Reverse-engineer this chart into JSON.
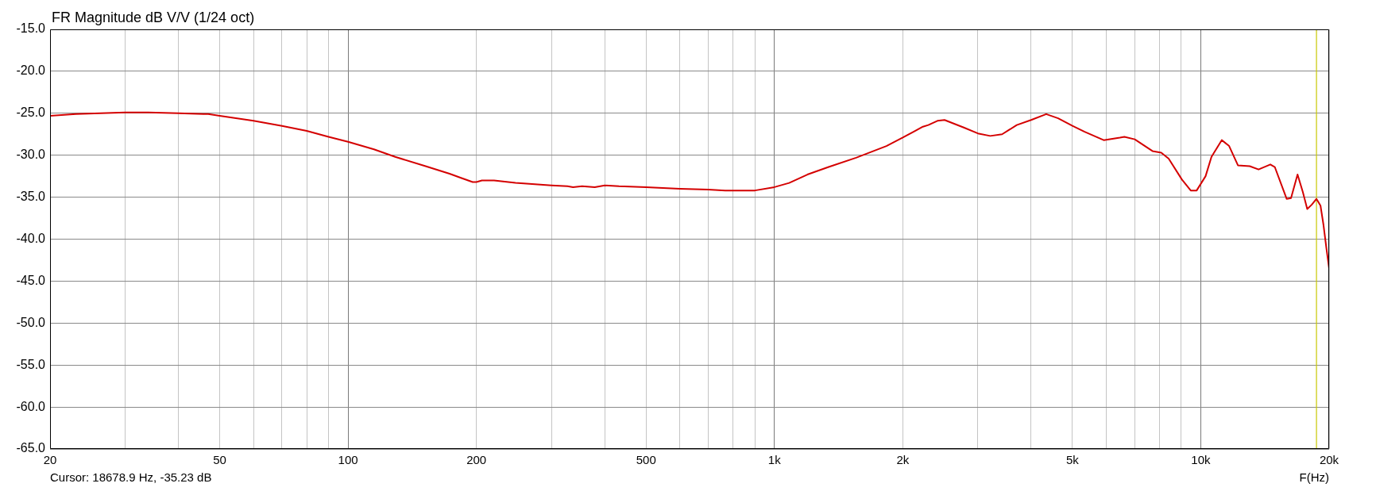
{
  "chart_data": {
    "type": "line",
    "title": "FR Magnitude dB V/V (1/24 oct)",
    "xlabel": "F(Hz)",
    "annotations": [
      "Cursor: 18678.9 Hz, -35.23 dB"
    ],
    "x": [
      20,
      23,
      30,
      34,
      40,
      47,
      50,
      60,
      70,
      80,
      90,
      100,
      115,
      129,
      152,
      173,
      184,
      196,
      200,
      206,
      220,
      247,
      300,
      327,
      337,
      354,
      379,
      400,
      432,
      500,
      600,
      700,
      767,
      900,
      1000,
      1083,
      1195,
      1340,
      1554,
      1831,
      2000,
      2120,
      2230,
      2296,
      2412,
      2506,
      2780,
      3000,
      3208,
      3420,
      3702,
      4000,
      4340,
      4628,
      5000,
      5340,
      5920,
      6462,
      6620,
      7000,
      7702,
      8078,
      8408,
      9032,
      9472,
      9780,
      10262,
      10594,
      11198,
      11654,
      12222,
      13026,
      13662,
      14560,
      14914,
      15900,
      16280,
      16864,
      17356,
      17770,
      18202,
      18679,
      19088,
      19400,
      19710,
      20000
    ],
    "series": [
      {
        "color": "#d40000",
        "values": [
          -25.3,
          -25.1,
          -24.9,
          -24.9,
          -25.0,
          -25.1,
          -25.3,
          -25.9,
          -26.5,
          -27.1,
          -27.8,
          -28.4,
          -29.3,
          -30.2,
          -31.3,
          -32.2,
          -32.7,
          -33.2,
          -33.2,
          -33.0,
          -33.0,
          -33.3,
          -33.6,
          -33.7,
          -33.8,
          -33.7,
          -33.8,
          -33.6,
          -33.7,
          -33.8,
          -34.0,
          -34.1,
          -34.2,
          -34.2,
          -33.8,
          -33.3,
          -32.3,
          -31.4,
          -30.3,
          -28.9,
          -27.9,
          -27.2,
          -26.6,
          -26.4,
          -25.9,
          -25.8,
          -26.7,
          -27.4,
          -27.7,
          -27.5,
          -26.4,
          -25.8,
          -25.1,
          -25.6,
          -26.5,
          -27.2,
          -28.2,
          -27.9,
          -27.8,
          -28.1,
          -29.5,
          -29.7,
          -30.4,
          -32.9,
          -34.2,
          -34.2,
          -32.5,
          -30.2,
          -28.2,
          -28.9,
          -31.2,
          -31.3,
          -31.7,
          -31.1,
          -31.4,
          -35.2,
          -35.1,
          -32.3,
          -34.4,
          -36.4,
          -35.9,
          -35.2,
          -36.0,
          -38.3,
          -41.1,
          -43.5
        ]
      }
    ],
    "xlim": [
      20,
      20000
    ],
    "ylim": [
      -65,
      -15
    ],
    "xticks": [
      20,
      {
        "value": 30,
        "label": null
      },
      {
        "value": 40,
        "label": null
      },
      50,
      {
        "value": 60,
        "label": null
      },
      {
        "value": 70,
        "label": null
      },
      {
        "value": 80,
        "label": null
      },
      {
        "value": 90,
        "label": null
      },
      100,
      200,
      {
        "value": 300,
        "label": null
      },
      {
        "value": 400,
        "label": null
      },
      500,
      {
        "value": 600,
        "label": null
      },
      {
        "value": 700,
        "label": null
      },
      {
        "value": 800,
        "label": null
      },
      {
        "value": 900,
        "label": null
      },
      {
        "value": 1000,
        "label": "1k"
      },
      {
        "value": 2000,
        "label": "2k"
      },
      {
        "value": 3000,
        "label": null
      },
      {
        "value": 4000,
        "label": null
      },
      {
        "value": 5000,
        "label": "5k"
      },
      {
        "value": 6000,
        "label": null
      },
      {
        "value": 7000,
        "label": null
      },
      {
        "value": 8000,
        "label": null
      },
      {
        "value": 9000,
        "label": null
      },
      {
        "value": 10000,
        "label": "10k"
      },
      {
        "value": 20000,
        "label": "20k"
      }
    ],
    "yticks": [
      {
        "value": -65,
        "label": "-65.0"
      },
      {
        "value": -60,
        "label": "-60.0"
      },
      {
        "value": -55,
        "label": "-55.0"
      },
      {
        "value": -50,
        "label": "-50.0"
      },
      {
        "value": -45,
        "label": "-45.0"
      },
      {
        "value": -40,
        "label": "-40.0"
      },
      {
        "value": -35,
        "label": "-35.0"
      },
      {
        "value": -30,
        "label": "-30.0"
      },
      {
        "value": -25,
        "label": "-25.0"
      },
      {
        "value": -20,
        "label": "-20.0"
      },
      {
        "value": -15,
        "label": "-15.0"
      }
    ],
    "log": "x",
    "grid": true,
    "ref_lines": [
      {
        "axis": "x",
        "value": 18678.9,
        "color": "#c8c800"
      }
    ]
  }
}
